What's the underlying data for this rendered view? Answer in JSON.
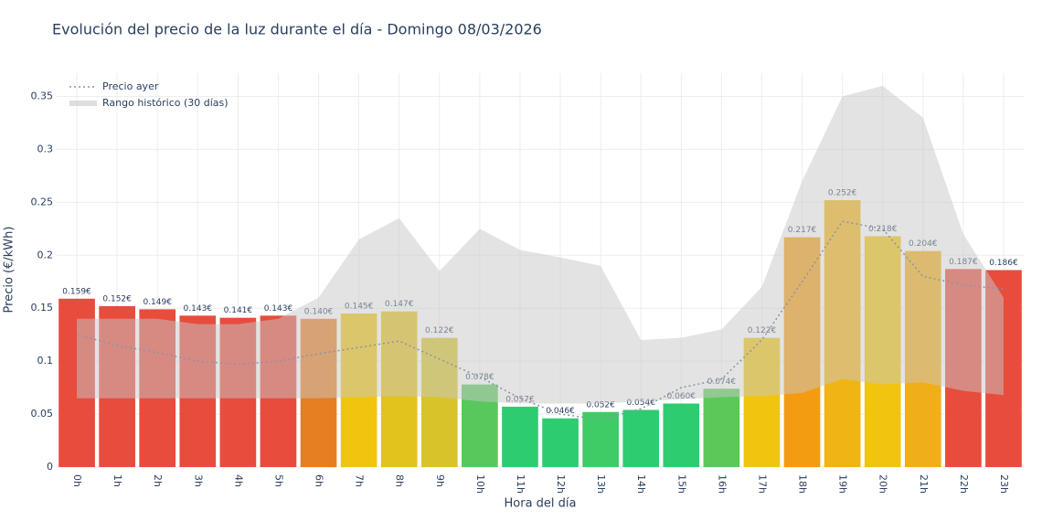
{
  "chart_data": {
    "type": "bar",
    "title": "Evolución del precio de la luz durante el día - Domingo 08/03/2026",
    "x_label": "Hora del día",
    "y_label": "Precio (€/kWh)",
    "categories": [
      "0h",
      "1h",
      "2h",
      "3h",
      "4h",
      "5h",
      "6h",
      "7h",
      "8h",
      "9h",
      "10h",
      "11h",
      "12h",
      "13h",
      "14h",
      "15h",
      "16h",
      "17h",
      "18h",
      "19h",
      "20h",
      "21h",
      "22h",
      "23h"
    ],
    "values": [
      0.159,
      0.152,
      0.149,
      0.143,
      0.141,
      0.143,
      0.14,
      0.145,
      0.147,
      0.122,
      0.078,
      0.057,
      0.046,
      0.052,
      0.054,
      0.06,
      0.074,
      0.122,
      0.217,
      0.252,
      0.218,
      0.204,
      0.187,
      0.186
    ],
    "value_labels": [
      "0.159€",
      "0.152€",
      "0.149€",
      "0.143€",
      "0.141€",
      "0.143€",
      "0.140€",
      "0.145€",
      "0.147€",
      "0.122€",
      "0.078€",
      "0.057€",
      "0.046€",
      "0.052€",
      "0.054€",
      "0.060€",
      "0.074€",
      "0.122€",
      "0.217€",
      "0.252€",
      "0.218€",
      "0.204€",
      "0.187€",
      "0.186€"
    ],
    "colors": [
      "#e74c3c",
      "#e74c3c",
      "#e74c3c",
      "#e74c3c",
      "#e74c3c",
      "#e74c3c",
      "#e67e22",
      "#f1c40f",
      "#e2c21c",
      "#d8c42a",
      "#58c85c",
      "#2ecc71",
      "#2ecc71",
      "#3fcc66",
      "#2ecc71",
      "#2ecc71",
      "#5cc85a",
      "#f1c40f",
      "#f39c12",
      "#f0b414",
      "#f1c40f",
      "#f0ae18",
      "#e74c3c",
      "#e74c3c"
    ],
    "series": [
      {
        "name": "Precio ayer",
        "color": "#8a94a6",
        "values": [
          0.125,
          0.115,
          0.108,
          0.1,
          0.097,
          0.1,
          0.107,
          0.113,
          0.119,
          0.102,
          0.085,
          0.065,
          0.05,
          0.045,
          0.055,
          0.075,
          0.083,
          0.12,
          0.175,
          0.232,
          0.225,
          0.18,
          0.172,
          0.168
        ]
      }
    ],
    "range": {
      "name": "Rango histórico (30 días)",
      "color": "#c8c8c8",
      "upper": [
        0.14,
        0.14,
        0.14,
        0.135,
        0.135,
        0.14,
        0.16,
        0.215,
        0.235,
        0.185,
        0.225,
        0.205,
        0.198,
        0.19,
        0.12,
        0.122,
        0.13,
        0.17,
        0.27,
        0.35,
        0.36,
        0.33,
        0.22,
        0.16
      ],
      "lower": [
        0.065,
        0.065,
        0.065,
        0.065,
        0.065,
        0.065,
        0.065,
        0.066,
        0.067,
        0.066,
        0.062,
        0.06,
        0.06,
        0.06,
        0.062,
        0.064,
        0.066,
        0.067,
        0.07,
        0.083,
        0.078,
        0.08,
        0.072,
        0.068
      ]
    },
    "ylim": [
      0,
      0.372
    ],
    "yticks": [
      0,
      0.05,
      0.1,
      0.15,
      0.2,
      0.25,
      0.3,
      0.35
    ],
    "grid": true,
    "legend": "top-left"
  }
}
